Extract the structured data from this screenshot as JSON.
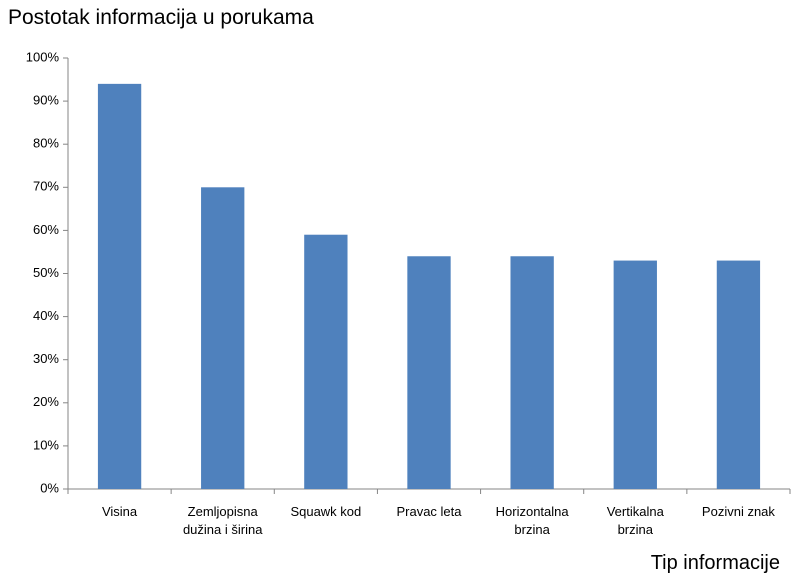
{
  "chart_data": {
    "type": "bar",
    "title": "Postotak informacija u porukama",
    "x_label": "Tip informacije",
    "categories": [
      "Visina",
      "Zemljopisna dužina i širina",
      "Squawk kod",
      "Pravac leta",
      "Horizontalna brzina",
      "Vertikalna brzina",
      "Pozivni znak"
    ],
    "values": [
      94,
      70,
      59,
      54,
      54,
      53,
      53
    ],
    "color": "#4f81bd",
    "ylim": [
      0,
      100
    ],
    "yticks": [
      {
        "value": 0,
        "label": "0%"
      },
      {
        "value": 10,
        "label": "10%"
      },
      {
        "value": 20,
        "label": "20%"
      },
      {
        "value": 30,
        "label": "30%"
      },
      {
        "value": 40,
        "label": "40%"
      },
      {
        "value": 50,
        "label": "50%"
      },
      {
        "value": 60,
        "label": "60%"
      },
      {
        "value": 70,
        "label": "70%"
      },
      {
        "value": 80,
        "label": "80%"
      },
      {
        "value": 90,
        "label": "90%"
      },
      {
        "value": 100,
        "label": "100%"
      }
    ],
    "grid": false
  }
}
